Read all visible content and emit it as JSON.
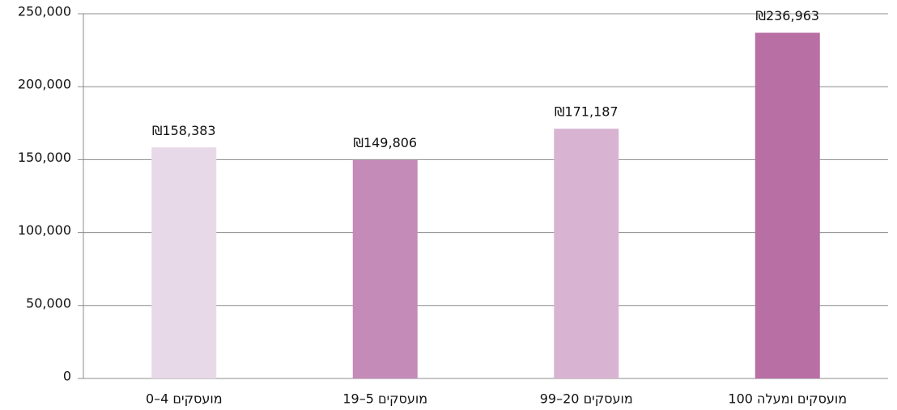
{
  "chart_data": {
    "type": "bar",
    "categories": [
      "0–4 מועסקים",
      "19–5 מועסקים",
      "99–20 מועסקים",
      "100 מועסקים ומעלה"
    ],
    "values": [
      158383,
      149806,
      171187,
      236963
    ],
    "value_labels": [
      "₪158,383",
      "₪149,806",
      "₪171,187",
      "₪236,963"
    ],
    "colors": [
      "#e8d9e8",
      "#c48bb8",
      "#d8b4d2",
      "#b86fa4"
    ],
    "ylim": [
      0,
      250000
    ],
    "yticks": [
      0,
      {
        "value": 50000,
        "label": "50,000"
      },
      {
        "value": 100000,
        "label": "100,000"
      },
      {
        "value": 150000,
        "label": "150,000"
      },
      {
        "value": 200000,
        "label": "200,000"
      },
      {
        "value": 250000,
        "label": "250,000"
      }
    ],
    "grid": true
  }
}
